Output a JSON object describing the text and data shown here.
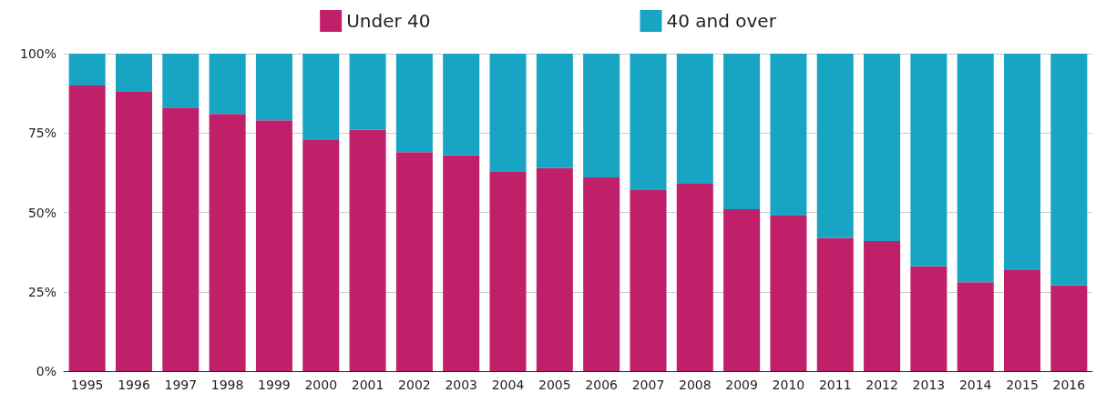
{
  "chart_data": {
    "type": "bar",
    "stacked": true,
    "categories": [
      "1995",
      "1996",
      "1997",
      "1998",
      "1999",
      "2000",
      "2001",
      "2002",
      "2003",
      "2004",
      "2005",
      "2006",
      "2007",
      "2008",
      "2009",
      "2010",
      "2011",
      "2012",
      "2013",
      "2014",
      "2015",
      "2016"
    ],
    "series": [
      {
        "name": "Under 40",
        "color": "#c0206a",
        "values": [
          90,
          88,
          83,
          81,
          79,
          73,
          76,
          69,
          68,
          63,
          64,
          61,
          57,
          59,
          51,
          49,
          42,
          41,
          33,
          28,
          32,
          27
        ]
      },
      {
        "name": "40 and over",
        "color": "#17a5c3",
        "values": [
          10,
          12,
          17,
          19,
          21,
          27,
          24,
          31,
          32,
          37,
          36,
          39,
          43,
          41,
          49,
          51,
          58,
          59,
          67,
          72,
          68,
          73
        ]
      }
    ],
    "ylim": [
      0,
      100
    ],
    "yticks": [
      {
        "value": 0,
        "label": "0%"
      },
      {
        "value": 25,
        "label": "25%"
      },
      {
        "value": 50,
        "label": "50%"
      },
      {
        "value": 75,
        "label": "75%"
      },
      {
        "value": 100,
        "label": "100%"
      }
    ],
    "grid": "y",
    "legend": "top"
  }
}
